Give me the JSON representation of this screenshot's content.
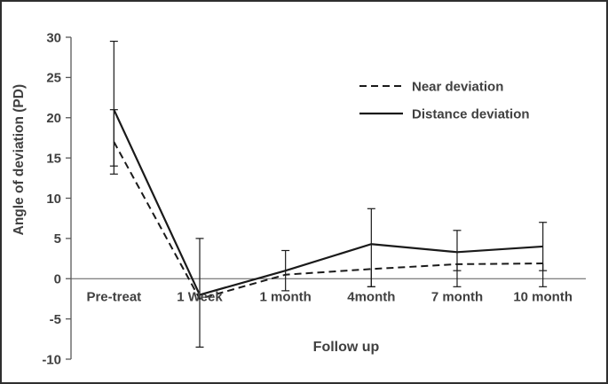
{
  "chart_data": {
    "type": "line",
    "title": "",
    "xlabel": "Follow up",
    "ylabel": "Angle of deviation (PD)",
    "ylim": [
      -10,
      30
    ],
    "ytick_step": 5,
    "grid": false,
    "legend_position": "top-right",
    "categories": [
      "Pre-treat",
      "1 Week",
      "1 month",
      "4month",
      "7 month",
      "10 month"
    ],
    "series": [
      {
        "name": "Near deviation",
        "style": "dashed",
        "values": [
          17,
          -2.5,
          0.5,
          1.2,
          1.8,
          1.9
        ],
        "err_up": [
          4,
          0,
          0,
          0,
          0,
          0
        ],
        "err_down": [
          4,
          0,
          0,
          2.2,
          2.8,
          2.9
        ]
      },
      {
        "name": "Distance deviation",
        "style": "solid",
        "values": [
          21,
          -2,
          1,
          4.3,
          3.3,
          4
        ],
        "err_up": [
          8.5,
          7,
          2.5,
          4.4,
          2.7,
          3
        ],
        "err_down": [
          7,
          6.5,
          2.5,
          5.3,
          2.3,
          3
        ]
      }
    ]
  },
  "colors": {
    "line": "#1a1a1a",
    "text": "#404040",
    "axis": "#595959",
    "frame": "#2e2e2e",
    "background": "#ffffff"
  }
}
